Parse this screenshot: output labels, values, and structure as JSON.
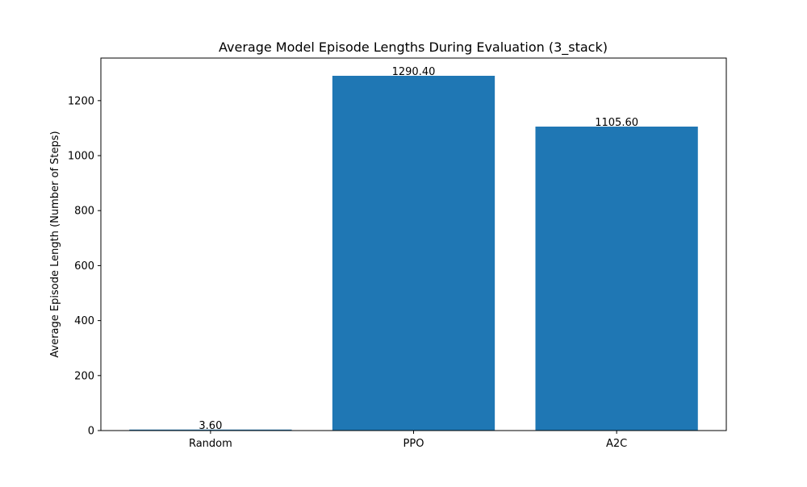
{
  "chart_data": {
    "type": "bar",
    "title": "Average Model Episode Lengths During Evaluation (3_stack)",
    "xlabel": "",
    "ylabel": "Average Episode Length (Number of Steps)",
    "categories": [
      "Random",
      "PPO",
      "A2C"
    ],
    "values": [
      3.6,
      1290.4,
      1105.6
    ],
    "value_labels": [
      "3.60",
      "1290.40",
      "1105.60"
    ],
    "ylim": [
      0,
      1354.92
    ],
    "yticks": [
      0,
      200,
      400,
      600,
      800,
      1000,
      1200
    ],
    "bar_color": "#1f77b4",
    "grid": false,
    "legend": "none"
  }
}
